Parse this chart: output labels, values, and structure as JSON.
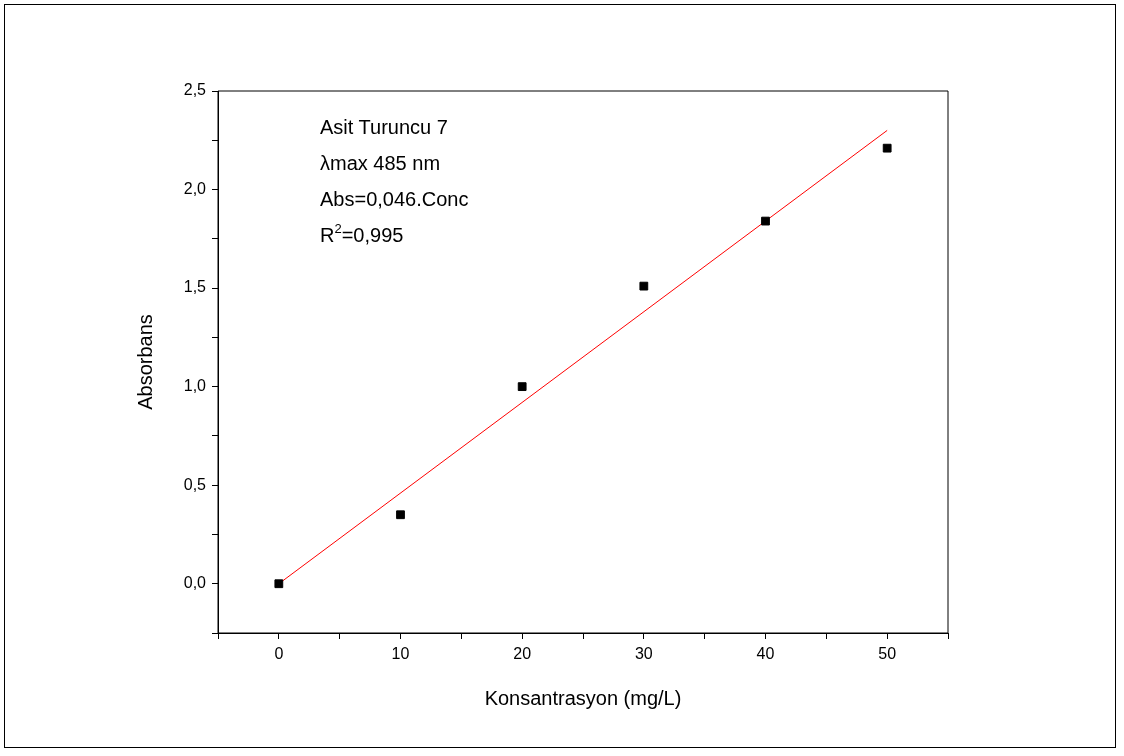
{
  "chart_data": {
    "type": "scatter",
    "xlabel": "Konsantrasyon (mg/L)",
    "ylabel": "Absorbans",
    "annotations": [
      "Asit Turuncu 7",
      "λmax 485 nm",
      "Abs=0,046.Conc",
      "R$^{2}$=0,995"
    ],
    "series": [
      {
        "marker": "square",
        "color": "#000000",
        "x": [
          0,
          10,
          20,
          30,
          40,
          50
        ],
        "values": [
          0,
          0.35,
          1.0,
          1.51,
          1.84,
          2.21
        ]
      },
      {
        "type": "line",
        "marker": "none",
        "color": "#ff0000",
        "x": [
          0,
          50
        ],
        "values": [
          0,
          2.3
        ]
      }
    ],
    "grid": false,
    "xlim": [
      -5,
      55
    ],
    "xticks": [
      {
        "value": -5,
        "label": null
      },
      0,
      {
        "value": 5,
        "label": null
      },
      10,
      {
        "value": 15,
        "label": null
      },
      20,
      {
        "value": 25,
        "label": null
      },
      30,
      {
        "value": 35,
        "label": null
      },
      40,
      {
        "value": 45,
        "label": null
      },
      50,
      {
        "value": 55,
        "label": null
      }
    ],
    "ylim": [
      -0.25,
      2.5
    ],
    "yticks": [
      {
        "value": -0.25,
        "label": null
      },
      {
        "value": 0,
        "label": "0,0"
      },
      {
        "value": 0.25,
        "label": null
      },
      {
        "value": 0.5,
        "label": "0,5"
      },
      {
        "value": 0.75,
        "label": null
      },
      {
        "value": 1,
        "label": "1,0"
      },
      {
        "value": 1.25,
        "label": null
      },
      {
        "value": 1.5,
        "label": "1,5"
      },
      {
        "value": 1.75,
        "label": null
      },
      {
        "value": 2,
        "label": "2,0"
      },
      {
        "value": 2.25,
        "label": null
      },
      {
        "value": 2.5,
        "label": "2,5"
      }
    ]
  }
}
